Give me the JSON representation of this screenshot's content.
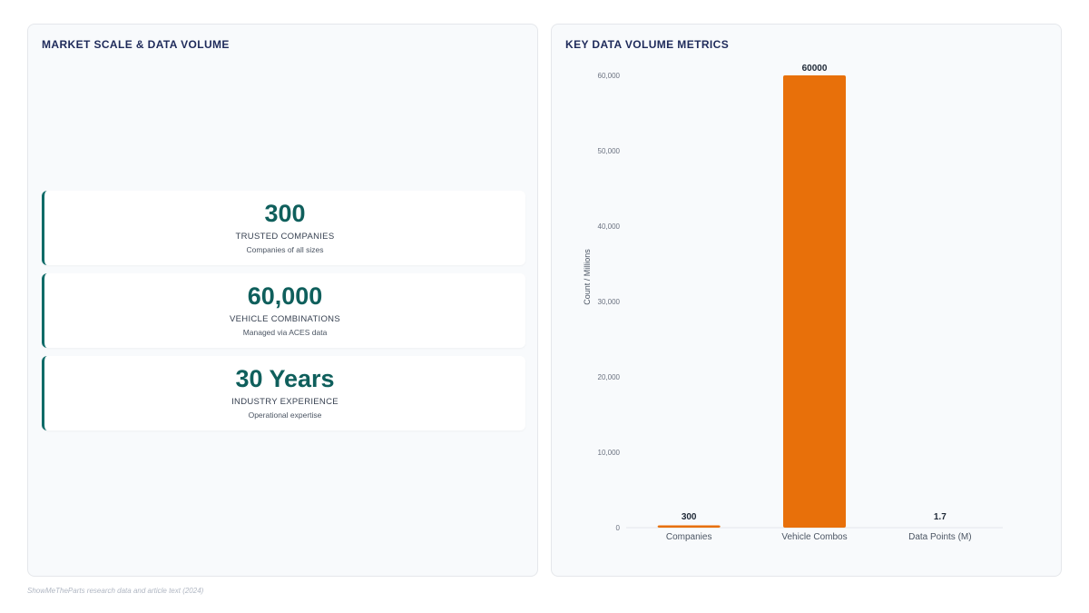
{
  "left_panel": {
    "title": "MARKET SCALE & DATA VOLUME",
    "stats": [
      {
        "value": "300",
        "label": "TRUSTED COMPANIES",
        "sub": "Companies of all sizes"
      },
      {
        "value": "60,000",
        "label": "VEHICLE COMBINATIONS",
        "sub": "Managed via ACES data"
      },
      {
        "value": "30 Years",
        "label": "INDUSTRY EXPERIENCE",
        "sub": "Operational expertise"
      }
    ]
  },
  "right_panel": {
    "title": "KEY DATA VOLUME METRICS"
  },
  "chart_data": {
    "type": "bar",
    "title": "KEY DATA VOLUME METRICS",
    "categories": [
      "Companies",
      "Vehicle Combos",
      "Data Points (M)"
    ],
    "values": [
      300,
      60000,
      1.7
    ],
    "data_labels": [
      "300",
      "60000",
      "1.7"
    ],
    "ylabel": "Count / Millions",
    "ylim": [
      0,
      60000
    ],
    "yticks": [
      0,
      10000,
      20000,
      30000,
      40000,
      50000,
      60000
    ],
    "ytick_labels": [
      "0",
      "10,000",
      "20,000",
      "30,000",
      "40,000",
      "50,000",
      "60,000"
    ],
    "bar_color": "#e8700a",
    "grid": false,
    "legend": "none"
  },
  "footer": "ShowMeTheParts research data and article text (2024)",
  "colors": {
    "accent_teal": "#0f5f5c",
    "title_navy": "#1e2a5a",
    "bar_orange": "#e8700a"
  }
}
